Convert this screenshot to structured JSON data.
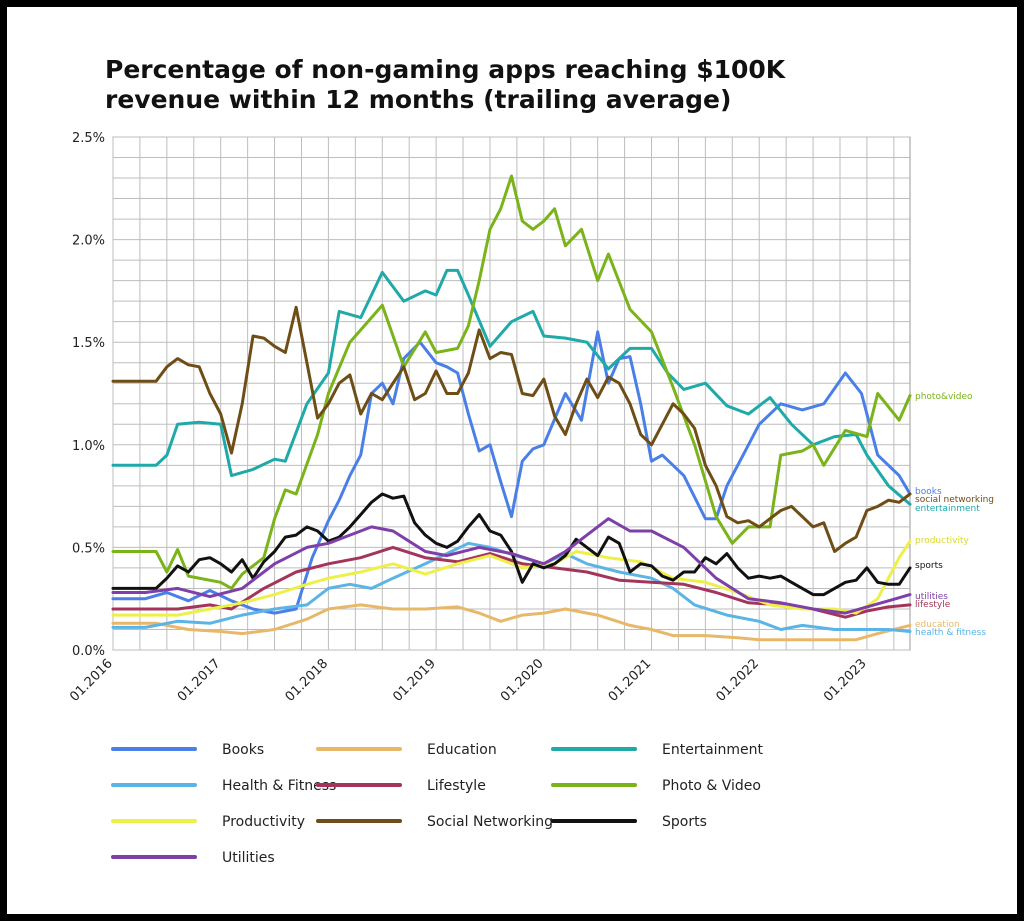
{
  "title_line1": "Percentage of non-gaming apps reaching $100K",
  "title_line2": "revenue within 12 months (trailing average)",
  "chart_data": {
    "type": "line",
    "title": "Percentage of non-gaming apps reaching $100K revenue within 12 months (trailing average)",
    "ylim": [
      0,
      2.5
    ],
    "yticks": [
      "0.0%",
      "0.5%",
      "1.0%",
      "1.5%",
      "2.0%",
      "2.5%"
    ],
    "xlim": [
      2016.0,
      2023.4
    ],
    "xticks": [
      "01.2016",
      "01.2017",
      "01.2018",
      "01.2019",
      "01.2020",
      "01.2021",
      "01.2022",
      "01.2023"
    ],
    "grid": true,
    "legend_position": "bottom",
    "series": [
      {
        "name": "Books",
        "color": "#4a7fe8",
        "end_label": "books",
        "end_label_color": "#4a7fe8",
        "x": [
          2016.0,
          2016.3,
          2016.5,
          2016.7,
          2016.9,
          2017.1,
          2017.3,
          2017.5,
          2017.7,
          2017.85,
          2018.0,
          2018.1,
          2018.2,
          2018.3,
          2018.4,
          2018.5,
          2018.6,
          2018.7,
          2018.85,
          2019.0,
          2019.1,
          2019.2,
          2019.3,
          2019.4,
          2019.5,
          2019.6,
          2019.7,
          2019.8,
          2019.9,
          2020.0,
          2020.2,
          2020.35,
          2020.5,
          2020.6,
          2020.7,
          2020.8,
          2020.9,
          2021.0,
          2021.1,
          2021.3,
          2021.5,
          2021.6,
          2021.7,
          2021.85,
          2022.0,
          2022.2,
          2022.4,
          2022.6,
          2022.8,
          2022.95,
          2023.1,
          2023.3,
          2023.4
        ],
        "y": [
          0.25,
          0.25,
          0.28,
          0.24,
          0.29,
          0.24,
          0.2,
          0.18,
          0.2,
          0.45,
          0.63,
          0.73,
          0.85,
          0.95,
          1.25,
          1.3,
          1.2,
          1.42,
          1.5,
          1.4,
          1.38,
          1.35,
          1.15,
          0.97,
          1.0,
          0.82,
          0.65,
          0.92,
          0.98,
          1.0,
          1.25,
          1.12,
          1.55,
          1.3,
          1.42,
          1.43,
          1.2,
          0.92,
          0.95,
          0.85,
          0.64,
          0.64,
          0.8,
          0.95,
          1.1,
          1.2,
          1.17,
          1.2,
          1.35,
          1.25,
          0.95,
          0.85,
          0.76
        ]
      },
      {
        "name": "Education",
        "color": "#e8b86a",
        "end_label": "education",
        "end_label_color": "#e8b86a",
        "x": [
          2016.0,
          2016.4,
          2016.7,
          2017.0,
          2017.2,
          2017.5,
          2017.8,
          2018.0,
          2018.3,
          2018.6,
          2018.9,
          2019.2,
          2019.4,
          2019.6,
          2019.8,
          2020.0,
          2020.2,
          2020.5,
          2020.8,
          2021.0,
          2021.2,
          2021.5,
          2021.8,
          2022.0,
          2022.3,
          2022.6,
          2022.9,
          2023.1,
          2023.4
        ],
        "y": [
          0.13,
          0.13,
          0.1,
          0.09,
          0.08,
          0.1,
          0.15,
          0.2,
          0.22,
          0.2,
          0.2,
          0.21,
          0.18,
          0.14,
          0.17,
          0.18,
          0.2,
          0.17,
          0.12,
          0.1,
          0.07,
          0.07,
          0.06,
          0.05,
          0.05,
          0.05,
          0.05,
          0.08,
          0.12
        ]
      },
      {
        "name": "Entertainment",
        "color": "#1fa9a9",
        "end_label": "entertainment",
        "end_label_color": "#1fa9a9",
        "x": [
          2016.0,
          2016.4,
          2016.5,
          2016.6,
          2016.8,
          2017.0,
          2017.1,
          2017.3,
          2017.5,
          2017.6,
          2017.8,
          2018.0,
          2018.1,
          2018.3,
          2018.5,
          2018.7,
          2018.9,
          2019.0,
          2019.1,
          2019.2,
          2019.3,
          2019.5,
          2019.7,
          2019.9,
          2020.0,
          2020.2,
          2020.4,
          2020.6,
          2020.8,
          2021.0,
          2021.15,
          2021.3,
          2021.5,
          2021.7,
          2021.9,
          2022.1,
          2022.3,
          2022.5,
          2022.7,
          2022.9,
          2023.0,
          2023.2,
          2023.4
        ],
        "y": [
          0.9,
          0.9,
          0.95,
          1.1,
          1.11,
          1.1,
          0.85,
          0.88,
          0.93,
          0.92,
          1.2,
          1.35,
          1.65,
          1.62,
          1.84,
          1.7,
          1.75,
          1.73,
          1.85,
          1.85,
          1.73,
          1.48,
          1.6,
          1.65,
          1.53,
          1.52,
          1.5,
          1.37,
          1.47,
          1.47,
          1.35,
          1.27,
          1.3,
          1.19,
          1.15,
          1.23,
          1.1,
          1.0,
          1.04,
          1.05,
          0.95,
          0.8,
          0.71
        ]
      },
      {
        "name": "Health & Fitness",
        "color": "#5ab4e5",
        "end_label": "health & fitness",
        "end_label_color": "#5ab4e5",
        "x": [
          2016.0,
          2016.3,
          2016.6,
          2016.9,
          2017.2,
          2017.5,
          2017.8,
          2018.0,
          2018.2,
          2018.4,
          2018.6,
          2018.9,
          2019.1,
          2019.3,
          2019.5,
          2019.8,
          2020.0,
          2020.2,
          2020.4,
          2020.7,
          2021.0,
          2021.2,
          2021.4,
          2021.7,
          2022.0,
          2022.2,
          2022.4,
          2022.7,
          2023.0,
          2023.2,
          2023.4
        ],
        "y": [
          0.11,
          0.11,
          0.14,
          0.13,
          0.17,
          0.2,
          0.22,
          0.3,
          0.32,
          0.3,
          0.35,
          0.42,
          0.47,
          0.52,
          0.5,
          0.45,
          0.42,
          0.47,
          0.42,
          0.38,
          0.35,
          0.3,
          0.22,
          0.17,
          0.14,
          0.1,
          0.12,
          0.1,
          0.1,
          0.1,
          0.09
        ]
      },
      {
        "name": "Lifestyle",
        "color": "#a4355a",
        "end_label": "lifestyle",
        "end_label_color": "#a4355a",
        "x": [
          2016.0,
          2016.3,
          2016.6,
          2016.9,
          2017.1,
          2017.4,
          2017.7,
          2018.0,
          2018.3,
          2018.6,
          2018.9,
          2019.2,
          2019.5,
          2019.8,
          2020.1,
          2020.4,
          2020.7,
          2021.0,
          2021.3,
          2021.6,
          2021.9,
          2022.2,
          2022.5,
          2022.8,
          2023.0,
          2023.2,
          2023.4
        ],
        "y": [
          0.2,
          0.2,
          0.2,
          0.22,
          0.2,
          0.3,
          0.38,
          0.42,
          0.45,
          0.5,
          0.45,
          0.43,
          0.47,
          0.42,
          0.4,
          0.38,
          0.34,
          0.33,
          0.32,
          0.28,
          0.23,
          0.22,
          0.2,
          0.16,
          0.19,
          0.21,
          0.22
        ]
      },
      {
        "name": "Photo & Video",
        "color": "#7ab31a",
        "end_label": "photo&video",
        "end_label_color": "#7ab31a",
        "x": [
          2016.0,
          2016.4,
          2016.5,
          2016.6,
          2016.7,
          2017.0,
          2017.1,
          2017.2,
          2017.4,
          2017.5,
          2017.6,
          2017.7,
          2017.9,
          2018.0,
          2018.2,
          2018.4,
          2018.5,
          2018.7,
          2018.9,
          2019.0,
          2019.2,
          2019.3,
          2019.4,
          2019.5,
          2019.6,
          2019.7,
          2019.8,
          2019.9,
          2020.0,
          2020.1,
          2020.2,
          2020.35,
          2020.5,
          2020.6,
          2020.8,
          2021.0,
          2021.2,
          2021.4,
          2021.6,
          2021.75,
          2021.9,
          2022.1,
          2022.2,
          2022.4,
          2022.5,
          2022.6,
          2022.8,
          2023.0,
          2023.1,
          2023.3,
          2023.4
        ],
        "y": [
          0.48,
          0.48,
          0.38,
          0.49,
          0.36,
          0.33,
          0.3,
          0.37,
          0.45,
          0.64,
          0.78,
          0.76,
          1.05,
          1.25,
          1.5,
          1.62,
          1.68,
          1.38,
          1.55,
          1.45,
          1.47,
          1.58,
          1.8,
          2.05,
          2.15,
          2.31,
          2.09,
          2.05,
          2.09,
          2.15,
          1.97,
          2.05,
          1.8,
          1.93,
          1.66,
          1.55,
          1.28,
          1.0,
          0.65,
          0.52,
          0.6,
          0.6,
          0.95,
          0.97,
          1.0,
          0.9,
          1.07,
          1.04,
          1.25,
          1.12,
          1.24
        ]
      },
      {
        "name": "Productivity",
        "color": "#eef04a",
        "end_label": "productivity",
        "end_label_color": "#d8da2c",
        "x": [
          2016.0,
          2016.3,
          2016.6,
          2016.9,
          2017.2,
          2017.5,
          2017.8,
          2018.0,
          2018.3,
          2018.6,
          2018.9,
          2019.2,
          2019.5,
          2019.8,
          2020.1,
          2020.3,
          2020.6,
          2020.9,
          2021.2,
          2021.5,
          2021.8,
          2022.1,
          2022.4,
          2022.7,
          2022.9,
          2023.1,
          2023.3,
          2023.4
        ],
        "y": [
          0.17,
          0.17,
          0.17,
          0.2,
          0.23,
          0.27,
          0.32,
          0.35,
          0.38,
          0.42,
          0.37,
          0.42,
          0.46,
          0.4,
          0.42,
          0.48,
          0.45,
          0.43,
          0.35,
          0.33,
          0.28,
          0.22,
          0.2,
          0.2,
          0.18,
          0.25,
          0.45,
          0.53
        ]
      },
      {
        "name": "Social Networking",
        "color": "#6e4e16",
        "end_label": "social networking",
        "end_label_color": "#6e4e16",
        "x": [
          2016.0,
          2016.4,
          2016.5,
          2016.6,
          2016.7,
          2016.8,
          2016.9,
          2017.0,
          2017.1,
          2017.2,
          2017.3,
          2017.4,
          2017.5,
          2017.6,
          2017.7,
          2017.8,
          2017.9,
          2018.0,
          2018.1,
          2018.2,
          2018.3,
          2018.4,
          2018.5,
          2018.6,
          2018.7,
          2018.8,
          2018.9,
          2019.0,
          2019.1,
          2019.2,
          2019.3,
          2019.4,
          2019.5,
          2019.6,
          2019.7,
          2019.8,
          2019.9,
          2020.0,
          2020.1,
          2020.2,
          2020.3,
          2020.4,
          2020.5,
          2020.6,
          2020.7,
          2020.8,
          2020.9,
          2021.0,
          2021.1,
          2021.2,
          2021.3,
          2021.4,
          2021.5,
          2021.6,
          2021.7,
          2021.8,
          2021.9,
          2022.0,
          2022.1,
          2022.2,
          2022.3,
          2022.4,
          2022.5,
          2022.6,
          2022.7,
          2022.8,
          2022.9,
          2023.0,
          2023.1,
          2023.2,
          2023.3,
          2023.4
        ],
        "y": [
          1.31,
          1.31,
          1.38,
          1.42,
          1.39,
          1.38,
          1.25,
          1.15,
          0.96,
          1.2,
          1.53,
          1.52,
          1.48,
          1.45,
          1.67,
          1.4,
          1.13,
          1.2,
          1.3,
          1.34,
          1.15,
          1.25,
          1.22,
          1.3,
          1.38,
          1.22,
          1.25,
          1.36,
          1.25,
          1.25,
          1.35,
          1.56,
          1.42,
          1.45,
          1.44,
          1.25,
          1.24,
          1.32,
          1.14,
          1.05,
          1.2,
          1.32,
          1.23,
          1.33,
          1.3,
          1.2,
          1.05,
          1.0,
          1.1,
          1.2,
          1.15,
          1.08,
          0.9,
          0.8,
          0.65,
          0.62,
          0.63,
          0.6,
          0.64,
          0.68,
          0.7,
          0.65,
          0.6,
          0.62,
          0.48,
          0.52,
          0.55,
          0.68,
          0.7,
          0.73,
          0.72,
          0.76
        ]
      },
      {
        "name": "Sports",
        "color": "#111111",
        "end_label": "sports",
        "end_label_color": "#111111",
        "x": [
          2016.0,
          2016.4,
          2016.5,
          2016.6,
          2016.7,
          2016.8,
          2016.9,
          2017.0,
          2017.1,
          2017.2,
          2017.3,
          2017.4,
          2017.5,
          2017.6,
          2017.7,
          2017.8,
          2017.9,
          2018.0,
          2018.1,
          2018.2,
          2018.3,
          2018.4,
          2018.5,
          2018.6,
          2018.7,
          2018.8,
          2018.9,
          2019.0,
          2019.1,
          2019.2,
          2019.3,
          2019.4,
          2019.5,
          2019.6,
          2019.7,
          2019.8,
          2019.9,
          2020.0,
          2020.1,
          2020.2,
          2020.3,
          2020.4,
          2020.5,
          2020.6,
          2020.7,
          2020.8,
          2020.9,
          2021.0,
          2021.1,
          2021.2,
          2021.3,
          2021.4,
          2021.5,
          2021.6,
          2021.7,
          2021.8,
          2021.9,
          2022.0,
          2022.1,
          2022.2,
          2022.3,
          2022.4,
          2022.5,
          2022.6,
          2022.7,
          2022.8,
          2022.9,
          2023.0,
          2023.1,
          2023.2,
          2023.3,
          2023.4
        ],
        "y": [
          0.3,
          0.3,
          0.35,
          0.41,
          0.38,
          0.44,
          0.45,
          0.42,
          0.38,
          0.44,
          0.35,
          0.43,
          0.48,
          0.55,
          0.56,
          0.6,
          0.58,
          0.53,
          0.55,
          0.6,
          0.66,
          0.72,
          0.76,
          0.74,
          0.75,
          0.62,
          0.56,
          0.52,
          0.5,
          0.53,
          0.6,
          0.66,
          0.58,
          0.56,
          0.48,
          0.33,
          0.42,
          0.4,
          0.42,
          0.46,
          0.54,
          0.5,
          0.46,
          0.55,
          0.52,
          0.38,
          0.42,
          0.41,
          0.36,
          0.34,
          0.38,
          0.38,
          0.45,
          0.42,
          0.47,
          0.4,
          0.35,
          0.36,
          0.35,
          0.36,
          0.33,
          0.3,
          0.27,
          0.27,
          0.3,
          0.33,
          0.34,
          0.4,
          0.33,
          0.32,
          0.32,
          0.4
        ]
      },
      {
        "name": "Utilities",
        "color": "#7e3fa8",
        "end_label": "utilities",
        "end_label_color": "#7e3fa8",
        "x": [
          2016.0,
          2016.3,
          2016.6,
          2016.9,
          2017.2,
          2017.5,
          2017.8,
          2018.0,
          2018.2,
          2018.4,
          2018.6,
          2018.9,
          2019.1,
          2019.4,
          2019.7,
          2020.0,
          2020.2,
          2020.4,
          2020.6,
          2020.8,
          2021.0,
          2021.3,
          2021.6,
          2021.9,
          2022.2,
          2022.5,
          2022.8,
          2023.0,
          2023.2,
          2023.4
        ],
        "y": [
          0.28,
          0.28,
          0.3,
          0.26,
          0.3,
          0.42,
          0.5,
          0.52,
          0.56,
          0.6,
          0.58,
          0.48,
          0.46,
          0.5,
          0.47,
          0.42,
          0.48,
          0.56,
          0.64,
          0.58,
          0.58,
          0.5,
          0.35,
          0.25,
          0.23,
          0.2,
          0.18,
          0.21,
          0.24,
          0.27
        ]
      }
    ]
  }
}
